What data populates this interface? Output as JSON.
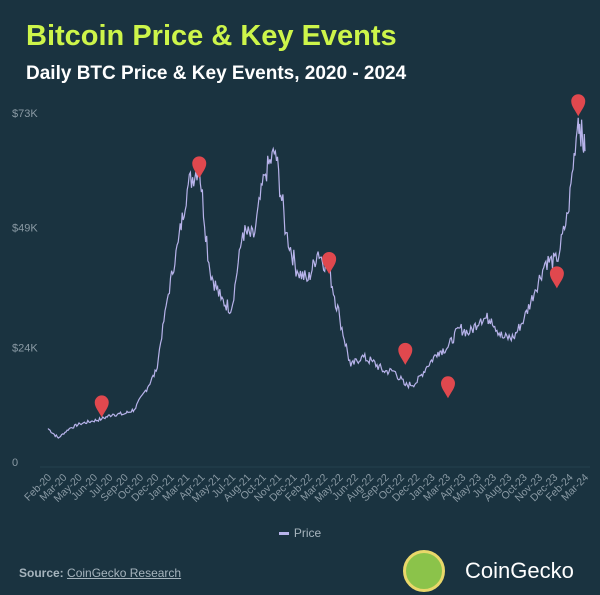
{
  "title": "Bitcoin Price & Key Events",
  "subtitle": "Daily BTC Price & Key Events, 2020 - 2024",
  "source_label": "Source:",
  "source_link": "CoinGecko Research",
  "brand": "CoinGecko",
  "colors": {
    "background": "#1a3340",
    "title": "#cdf54a",
    "line": "#b7b3ea",
    "event_marker": "#e0484e",
    "axis_text": "#8a9aa4"
  },
  "chart_data": {
    "type": "line",
    "title": "Bitcoin Price & Key Events",
    "subtitle": "Daily BTC Price & Key Events, 2020 - 2024",
    "ylim": [
      0,
      73000
    ],
    "y_ticks": [
      {
        "value": 0,
        "label": "0"
      },
      {
        "value": 24000,
        "label": "$24K"
      },
      {
        "value": 49000,
        "label": "$49K"
      },
      {
        "value": 73000,
        "label": "$73K"
      }
    ],
    "x_tick_labels": [
      "Feb-20",
      "Mar-20",
      "May-20",
      "Jun-20",
      "Jul-20",
      "Sep-20",
      "Oct-20",
      "Dec-20",
      "Jan-21",
      "Mar-21",
      "Apr-21",
      "May-21",
      "Jul-21",
      "Aug-21",
      "Oct-21",
      "Nov-21",
      "Dec-21",
      "Feb-22",
      "Mar-22",
      "May-22",
      "Jun-22",
      "Aug-22",
      "Sep-22",
      "Oct-22",
      "Dec-22",
      "Jan-23",
      "Mar-23",
      "Apr-23",
      "May-23",
      "Jul-23",
      "Aug-23",
      "Oct-23",
      "Nov-23",
      "Dec-23",
      "Feb-24",
      "Mar-24"
    ],
    "grid": false,
    "legend": {
      "position": "bottom",
      "entries": [
        "Price"
      ]
    },
    "series": [
      {
        "name": "Price",
        "x": [
          "2020-02",
          "2020-03",
          "2020-04",
          "2020-05",
          "2020-06",
          "2020-07",
          "2020-08",
          "2020-09",
          "2020-10",
          "2020-11",
          "2020-12",
          "2021-01",
          "2021-02",
          "2021-03",
          "2021-04",
          "2021-05",
          "2021-06",
          "2021-07",
          "2021-08",
          "2021-09",
          "2021-10",
          "2021-11",
          "2021-12",
          "2022-01",
          "2022-02",
          "2022-03",
          "2022-04",
          "2022-05",
          "2022-06",
          "2022-07",
          "2022-08",
          "2022-09",
          "2022-10",
          "2022-11",
          "2022-12",
          "2023-01",
          "2023-02",
          "2023-03",
          "2023-04",
          "2023-05",
          "2023-06",
          "2023-07",
          "2023-08",
          "2023-09",
          "2023-10",
          "2023-11",
          "2023-12",
          "2024-01",
          "2024-02",
          "2024-03",
          "2024-03-20"
        ],
        "values": [
          7000,
          5000,
          7000,
          8000,
          8500,
          9000,
          10000,
          10000,
          11000,
          15000,
          19000,
          34000,
          46000,
          58000,
          62000,
          40000,
          34000,
          32000,
          48000,
          47000,
          60000,
          65000,
          48000,
          40000,
          38000,
          44000,
          40000,
          30000,
          20000,
          22000,
          21000,
          19000,
          19000,
          16000,
          16500,
          20000,
          23000,
          24000,
          28000,
          27000,
          30000,
          30000,
          26000,
          26000,
          30000,
          36000,
          42000,
          42000,
          52000,
          72000,
          65000
        ]
      }
    ],
    "events": [
      {
        "date": "2020-07",
        "value": 11000
      },
      {
        "date": "2021-04",
        "value": 61000
      },
      {
        "date": "2022-04",
        "value": 41000
      },
      {
        "date": "2022-11",
        "value": 22000
      },
      {
        "date": "2023-03",
        "value": 15000
      },
      {
        "date": "2024-01",
        "value": 38000
      },
      {
        "date": "2024-03",
        "value": 74000
      }
    ]
  }
}
